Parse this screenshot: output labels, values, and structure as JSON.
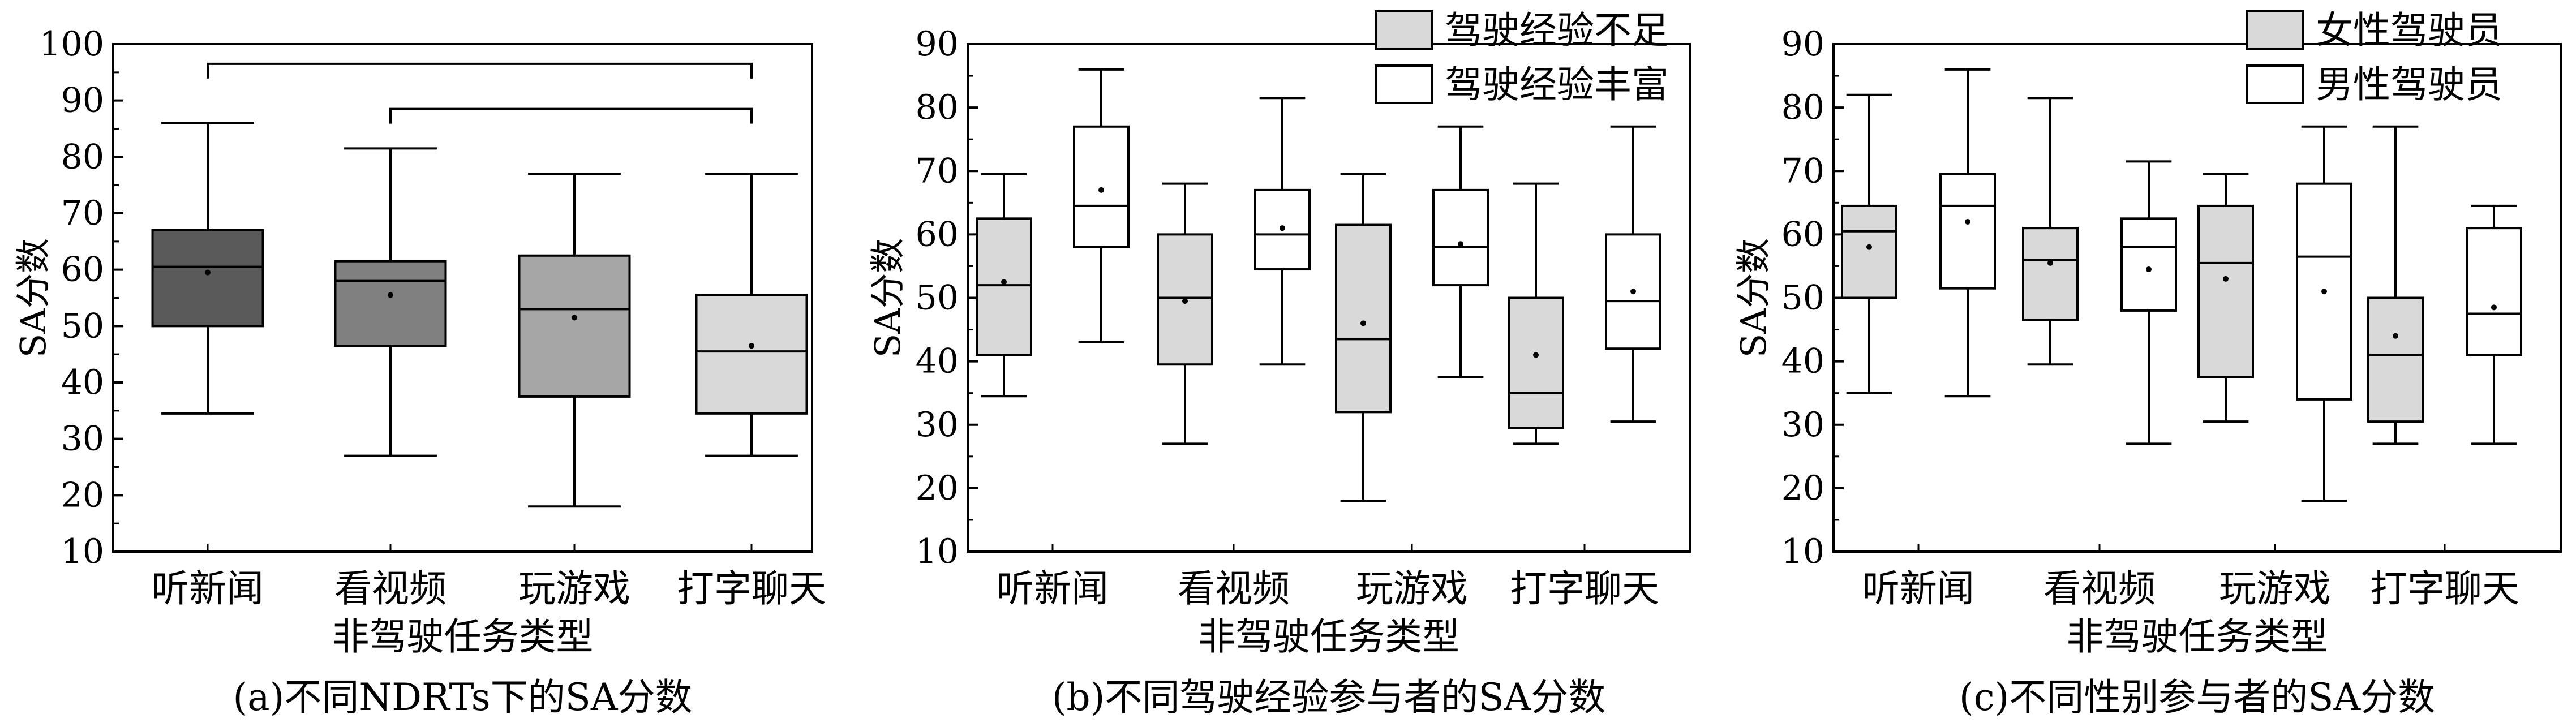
{
  "chart_data": [
    {
      "type": "box",
      "caption": "(a)不同NDRTs下的SA分数",
      "xlabel": "非驾驶任务类型",
      "ylabel": "SA分数",
      "ylim": [
        10,
        100
      ],
      "yticks": [
        10,
        20,
        30,
        40,
        50,
        60,
        70,
        80,
        90,
        100
      ],
      "categories": [
        "听新闻",
        "看视频",
        "玩游戏",
        "打字聊天"
      ],
      "legend": [],
      "series": [
        {
          "fills": [
            "#5a5a5a",
            "#808080",
            "#a6a6a6",
            "#d9d9d9"
          ],
          "boxes": [
            {
              "min": 34.5,
              "q1": 50,
              "median": 60.5,
              "q3": 67,
              "max": 86,
              "mean": 59.5
            },
            {
              "min": 27,
              "q1": 46.5,
              "median": 58,
              "q3": 61.5,
              "max": 81.5,
              "mean": 55.5
            },
            {
              "min": 18,
              "q1": 37.5,
              "median": 53,
              "q3": 62.5,
              "max": 77,
              "mean": 51.5
            },
            {
              "min": 27,
              "q1": 34.5,
              "median": 45.5,
              "q3": 55.5,
              "max": 77,
              "mean": 46.5
            }
          ]
        }
      ],
      "brackets": [
        {
          "from": 0,
          "to": 3,
          "y": 96.5
        },
        {
          "from": 1,
          "to": 3,
          "y": 88.5
        }
      ]
    },
    {
      "type": "box",
      "caption": "(b)不同驾驶经验参与者的SA分数",
      "xlabel": "非驾驶任务类型",
      "ylabel": "SA分数",
      "ylim": [
        10,
        90
      ],
      "yticks": [
        10,
        20,
        30,
        40,
        50,
        60,
        70,
        80,
        90
      ],
      "categories": [
        "听新闻",
        "看视频",
        "玩游戏",
        "打字聊天"
      ],
      "legend": [
        "驾驶经验不足",
        "驾驶经验丰富"
      ],
      "series": [
        {
          "name": "驾驶经验不足",
          "color": "#d9d9d9",
          "boxes": [
            {
              "min": 34.5,
              "q1": 41,
              "median": 52,
              "q3": 62.5,
              "max": 69.5,
              "mean": 52.5
            },
            {
              "min": 27,
              "q1": 39.5,
              "median": 50,
              "q3": 60,
              "max": 68,
              "mean": 49.5
            },
            {
              "min": 18,
              "q1": 32,
              "median": 43.5,
              "q3": 61.5,
              "max": 69.5,
              "mean": 46
            },
            {
              "min": 27,
              "q1": 29.5,
              "median": 35,
              "q3": 50,
              "max": 68,
              "mean": 41
            }
          ]
        },
        {
          "name": "驾驶经验丰富",
          "color": "#ffffff",
          "boxes": [
            {
              "min": 43,
              "q1": 58,
              "median": 64.5,
              "q3": 77,
              "max": 86,
              "mean": 67
            },
            {
              "min": 39.5,
              "q1": 54.5,
              "median": 60,
              "q3": 67,
              "max": 81.5,
              "mean": 61
            },
            {
              "min": 37.5,
              "q1": 52,
              "median": 58,
              "q3": 67,
              "max": 77,
              "mean": 58.5
            },
            {
              "min": 30.5,
              "q1": 42,
              "median": 49.5,
              "q3": 60,
              "max": 77,
              "mean": 51
            }
          ]
        }
      ]
    },
    {
      "type": "box",
      "caption": "(c)不同性别参与者的SA分数",
      "xlabel": "非驾驶任务类型",
      "ylabel": "SA分数",
      "ylim": [
        10,
        90
      ],
      "yticks": [
        10,
        20,
        30,
        40,
        50,
        60,
        70,
        80,
        90
      ],
      "categories": [
        "听新闻",
        "看视频",
        "玩游戏",
        "打字聊天"
      ],
      "legend": [
        "女性驾驶员",
        "男性驾驶员"
      ],
      "series": [
        {
          "name": "女性驾驶员",
          "color": "#d9d9d9",
          "boxes": [
            {
              "min": 35,
              "q1": 50,
              "median": 60.5,
              "q3": 64.5,
              "max": 82,
              "mean": 58
            },
            {
              "min": 39.5,
              "q1": 46.5,
              "median": 56,
              "q3": 61,
              "max": 81.5,
              "mean": 55.5
            },
            {
              "min": 30.5,
              "q1": 37.5,
              "median": 55.5,
              "q3": 64.5,
              "max": 69.5,
              "mean": 53
            },
            {
              "min": 27,
              "q1": 30.5,
              "median": 41,
              "q3": 50,
              "max": 77,
              "mean": 44
            }
          ]
        },
        {
          "name": "男性驾驶员",
          "color": "#ffffff",
          "boxes": [
            {
              "min": 34.5,
              "q1": 51.5,
              "median": 64.5,
              "q3": 69.5,
              "max": 86,
              "mean": 62
            },
            {
              "min": 27,
              "q1": 48,
              "median": 58,
              "q3": 62.5,
              "max": 71.5,
              "mean": 54.5
            },
            {
              "min": 18,
              "q1": 34,
              "median": 56.5,
              "q3": 68,
              "max": 77,
              "mean": 51
            },
            {
              "min": 27,
              "q1": 41,
              "median": 47.5,
              "q3": 61,
              "max": 64.5,
              "mean": 48.5
            }
          ]
        }
      ]
    }
  ]
}
